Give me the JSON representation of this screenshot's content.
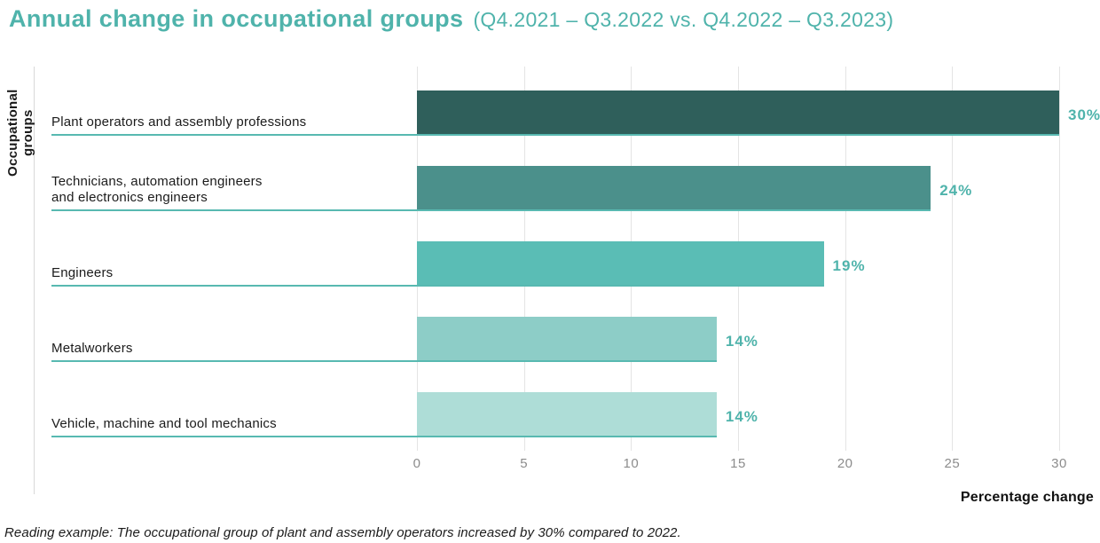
{
  "title": "Annual change in occupational groups",
  "subtitle": "(Q4.2021 – Q3.2022 vs. Q4.2022 – Q3.2023)",
  "chart_data": {
    "type": "bar",
    "orientation": "horizontal",
    "title": "Annual change in occupational groups",
    "subtitle": "(Q4.2021 – Q3.2022 vs. Q4.2022 – Q3.2023)",
    "categories": [
      "Plant operators and assembly professions",
      "Technicians, automation engineers\nand electronics engineers",
      "Engineers",
      "Metalworkers",
      "Vehicle, machine and tool mechanics"
    ],
    "values": [
      30,
      24,
      19,
      14,
      14
    ],
    "value_labels": [
      "30%",
      "24%",
      "19%",
      "14%",
      "14%"
    ],
    "bar_colors": [
      "#2F5F5B",
      "#4B908B",
      "#5ABDB5",
      "#8DCDC7",
      "#AEDDD7"
    ],
    "xlabel": "Percentage change",
    "ylabel": "Occupational groups",
    "xlim": [
      0,
      30
    ],
    "xticks": [
      0,
      5,
      10,
      15,
      20,
      25,
      30
    ],
    "grid": "vertical",
    "legend": "none",
    "accent_color": "#4FB3AB",
    "underline_color": "#58B9B1"
  },
  "footnote": "Reading example: The occupational group of plant and assembly operators increased by 30% compared to 2022."
}
